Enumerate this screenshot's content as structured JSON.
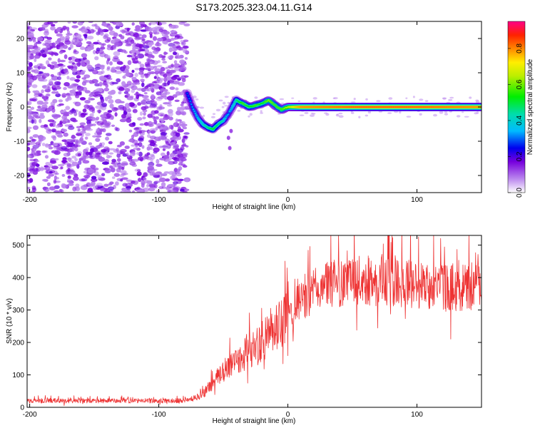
{
  "figure_title": "S173.2025.323.04.11.G14",
  "chart_data": [
    {
      "type": "heatmap",
      "title": "S173.2025.323.04.11.G14",
      "xlabel": "Height of straight line (km)",
      "ylabel": "Frequency (Hz)",
      "xlim": [
        -202,
        150
      ],
      "ylim": [
        -25,
        25
      ],
      "xticks": [
        -200,
        -100,
        0,
        100
      ],
      "yticks": [
        -20,
        -10,
        0,
        10,
        20
      ],
      "colorbar": {
        "label": "Normalized spectral amplitude",
        "range": [
          0.0,
          0.95
        ],
        "ticks": [
          0.0,
          0.2,
          0.4,
          0.6,
          0.8
        ]
      },
      "ridge": [
        {
          "x": -78,
          "f": 4,
          "a": 0.25
        },
        {
          "x": -74,
          "f": 0,
          "a": 0.3
        },
        {
          "x": -70,
          "f": -3,
          "a": 0.35
        },
        {
          "x": -66,
          "f": -5,
          "a": 0.4
        },
        {
          "x": -62,
          "f": -6,
          "a": 0.45
        },
        {
          "x": -58,
          "f": -6.5,
          "a": 0.5
        },
        {
          "x": -54,
          "f": -5,
          "a": 0.45
        },
        {
          "x": -50,
          "f": -4,
          "a": 0.4
        },
        {
          "x": -46,
          "f": -2,
          "a": 0.3
        },
        {
          "x": -40,
          "f": 2,
          "a": 0.45
        },
        {
          "x": -35,
          "f": 1,
          "a": 0.55
        },
        {
          "x": -30,
          "f": 0,
          "a": 0.5
        },
        {
          "x": -25,
          "f": 0.5,
          "a": 0.55
        },
        {
          "x": -20,
          "f": 1,
          "a": 0.5
        },
        {
          "x": -15,
          "f": 2,
          "a": 0.6
        },
        {
          "x": -10,
          "f": 0.5,
          "a": 0.55
        },
        {
          "x": -5,
          "f": -0.8,
          "a": 0.55
        },
        {
          "x": 0,
          "f": 0,
          "a": 0.65
        },
        {
          "x": 10,
          "f": 0,
          "a": 0.8
        },
        {
          "x": 50,
          "f": 0,
          "a": 0.85
        },
        {
          "x": 100,
          "f": 0,
          "a": 0.85
        },
        {
          "x": 150,
          "f": 0,
          "a": 0.8
        }
      ]
    },
    {
      "type": "line",
      "xlabel": "Height of straight line (km)",
      "ylabel": "SNR (10 * v/v)",
      "xlim": [
        -202,
        150
      ],
      "ylim": [
        0,
        530
      ],
      "xticks": [
        -200,
        -100,
        0,
        100
      ],
      "yticks": [
        0,
        100,
        200,
        300,
        400,
        500
      ],
      "color": "#ee3333",
      "series": [
        {
          "name": "SNR",
          "x": [
            -200,
            -190,
            -180,
            -170,
            -160,
            -150,
            -140,
            -130,
            -120,
            -110,
            -100,
            -90,
            -80,
            -75,
            -70,
            -65,
            -60,
            -55,
            -50,
            -45,
            -40,
            -35,
            -30,
            -25,
            -20,
            -15,
            -10,
            -5,
            0,
            5,
            10,
            15,
            20,
            25,
            30,
            40,
            50,
            60,
            70,
            80,
            90,
            100,
            110,
            120,
            130,
            140,
            150
          ],
          "values": [
            20,
            20,
            20,
            20,
            20,
            20,
            20,
            20,
            20,
            20,
            20,
            20,
            22,
            25,
            32,
            45,
            65,
            90,
            110,
            130,
            145,
            160,
            175,
            185,
            200,
            220,
            235,
            255,
            285,
            305,
            325,
            345,
            355,
            365,
            375,
            385,
            390,
            390,
            388,
            385,
            380,
            378,
            375,
            372,
            370,
            370,
            370
          ]
        }
      ]
    }
  ]
}
